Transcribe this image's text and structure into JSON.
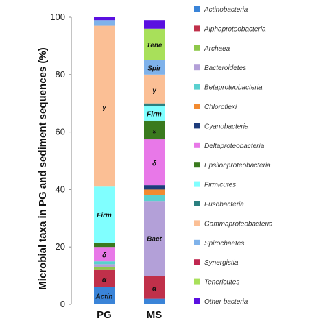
{
  "chart_data": {
    "type": "bar",
    "stacked": true,
    "categories": [
      "PG",
      "MS"
    ],
    "ylabel": "Microbial taxa in PG and sediment sequences (%)",
    "ylim": [
      0,
      100
    ],
    "yticks": [
      "0",
      "20",
      "40",
      "60",
      "80",
      "100"
    ],
    "legend_position": "right",
    "series": [
      {
        "name": "Actinobacteria",
        "color": "#3a84d8",
        "values": [
          6,
          2
        ]
      },
      {
        "name": "Alphaproteobacteria",
        "color": "#c0304a",
        "values": [
          6,
          8
        ]
      },
      {
        "name": "Archaea",
        "color": "#8ec84a",
        "values": [
          1,
          0
        ]
      },
      {
        "name": "Bacteroidetes",
        "color": "#b3a0d8",
        "values": [
          1,
          26
        ]
      },
      {
        "name": "Betaproteobacteria",
        "color": "#5ad0cf",
        "values": [
          1,
          2
        ]
      },
      {
        "name": "Chloroflexi",
        "color": "#f28a30",
        "values": [
          0,
          2
        ]
      },
      {
        "name": "Cyanobacteria",
        "color": "#1e3c7c",
        "values": [
          0,
          1.5
        ]
      },
      {
        "name": "Deltaproteobacteria",
        "color": "#e878e8",
        "values": [
          5,
          16
        ]
      },
      {
        "name": "Epsilonproteobacteria",
        "color": "#3a7a1e",
        "values": [
          1.5,
          6.5
        ]
      },
      {
        "name": "Firmicutes",
        "color": "#80ffff",
        "values": [
          19.5,
          5
        ]
      },
      {
        "name": "Fusobacteria",
        "color": "#2a7f7f",
        "values": [
          0,
          1
        ]
      },
      {
        "name": "Gammaproteobacteria",
        "color": "#fbbf95",
        "values": [
          56,
          10
        ]
      },
      {
        "name": "Spirochaetes",
        "color": "#7fb2ea",
        "values": [
          2,
          5
        ]
      },
      {
        "name": "Synergistia",
        "color": "#c02850",
        "values": [
          0,
          0
        ]
      },
      {
        "name": "Tenericutes",
        "color": "#a8e05a",
        "values": [
          0,
          11
        ]
      },
      {
        "name": "Other bacteria",
        "color": "#5a10e0",
        "values": [
          1,
          3
        ]
      }
    ],
    "segment_labels": [
      {
        "category": "PG",
        "series": "Actinobacteria",
        "text": "Actin"
      },
      {
        "category": "PG",
        "series": "Alphaproteobacteria",
        "text": "α"
      },
      {
        "category": "PG",
        "series": "Deltaproteobacteria",
        "text": "δ"
      },
      {
        "category": "PG",
        "series": "Firmicutes",
        "text": "Firm"
      },
      {
        "category": "PG",
        "series": "Gammaproteobacteria",
        "text": "γ"
      },
      {
        "category": "MS",
        "series": "Alphaproteobacteria",
        "text": "α"
      },
      {
        "category": "MS",
        "series": "Bacteroidetes",
        "text": "Bact"
      },
      {
        "category": "MS",
        "series": "Deltaproteobacteria",
        "text": "δ"
      },
      {
        "category": "MS",
        "series": "Epsilonproteobacteria",
        "text": "ε"
      },
      {
        "category": "MS",
        "series": "Firmicutes",
        "text": "Firm"
      },
      {
        "category": "MS",
        "series": "Gammaproteobacteria",
        "text": "γ"
      },
      {
        "category": "MS",
        "series": "Spirochaetes",
        "text": "Spir"
      },
      {
        "category": "MS",
        "series": "Tenericutes",
        "text": "Tene"
      }
    ]
  }
}
